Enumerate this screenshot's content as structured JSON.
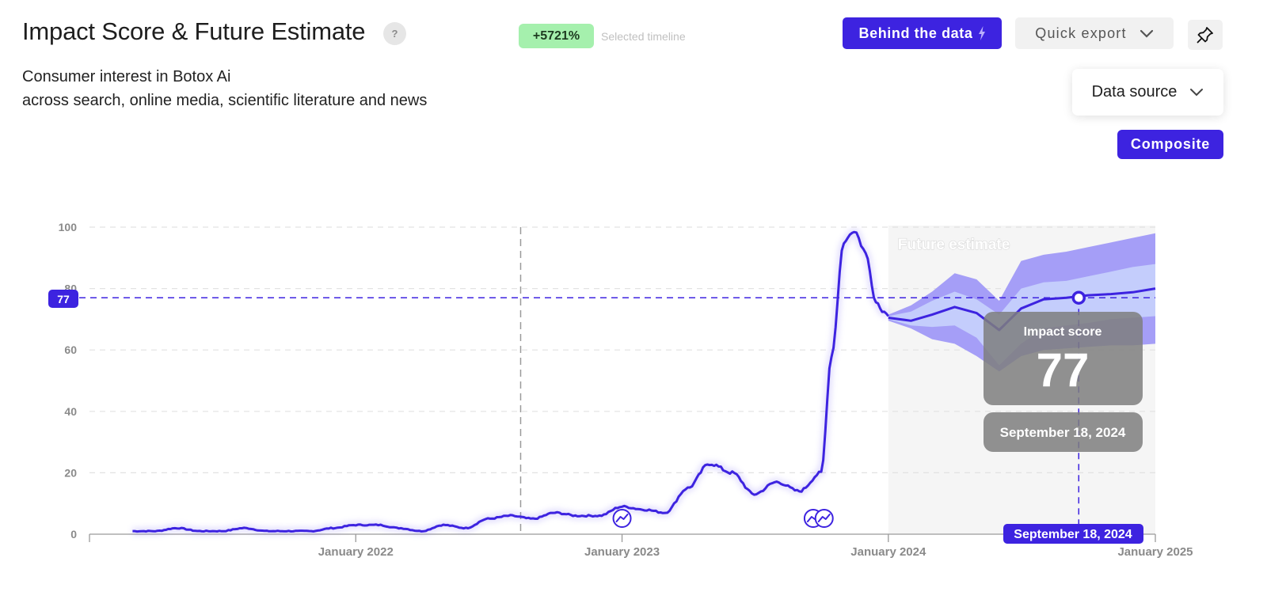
{
  "header": {
    "title": "Impact Score & Future Estimate",
    "help_label": "?",
    "subtitle_line1": "Consumer interest in Botox Ai",
    "subtitle_line2": "across search, online media, scientific literature and news",
    "change_badge": "+5721%",
    "change_caption": "Selected timeline"
  },
  "toolbar": {
    "behind_label": "Behind the data",
    "export_label": "Quick export",
    "data_source_label": "Data source",
    "composite_label": "Composite"
  },
  "icons": {
    "behind": "lightning-icon",
    "export": "chevron-down-icon",
    "pin": "pin-icon",
    "data_source": "chevron-down-icon",
    "event": "trend-event-icon"
  },
  "colors": {
    "accent": "#3d23e0",
    "band_outer": "#a59ef7",
    "band_inner": "#c4cdfc",
    "future_bg": "#f5f5f5",
    "tooltip_bg": "#8e8e8e",
    "badge_green": "#a5f0ad"
  },
  "chart_data": {
    "type": "line",
    "ylim": [
      0,
      100
    ],
    "yticks": [
      0,
      20,
      40,
      60,
      80,
      100
    ],
    "xlim": [
      "2021-01-01",
      "2025-01-01"
    ],
    "xticks": [
      {
        "date": "2022-01-01",
        "label": "January 2022"
      },
      {
        "date": "2023-01-01",
        "label": "January 2023"
      },
      {
        "date": "2024-01-01",
        "label": "January 2024"
      },
      {
        "date": "2025-01-01",
        "label": "January 2025"
      }
    ],
    "grid": true,
    "selected_timeline_start": "2022-08-15",
    "future_estimate": {
      "label": "Future estimate",
      "start": "2024-01-01",
      "x": [
        "2024-01-01",
        "2024-02-01",
        "2024-03-01",
        "2024-04-01",
        "2024-05-01",
        "2024-06-01",
        "2024-07-01",
        "2024-08-01",
        "2024-09-01",
        "2024-10-01",
        "2024-11-01",
        "2024-12-01",
        "2025-01-01"
      ],
      "median": [
        70.5,
        69.5,
        71.5,
        74,
        72,
        66.5,
        73.5,
        76.5,
        77,
        77.8,
        78.2,
        78.8,
        80
      ],
      "inner_upper": [
        71,
        72.5,
        76,
        79,
        76.5,
        71.5,
        80,
        82,
        82.5,
        84,
        85.5,
        87,
        88
      ],
      "inner_lower": [
        70,
        68,
        67.5,
        68,
        64,
        55,
        62,
        67,
        68,
        68.8,
        70,
        70.5,
        71
      ],
      "outer_upper": [
        71.5,
        74.5,
        79,
        85,
        83,
        76,
        89,
        91,
        92,
        93.5,
        95,
        96.5,
        98
      ],
      "outer_lower": [
        69.5,
        67,
        63.5,
        62,
        58,
        53,
        58,
        60,
        60.5,
        61,
        61.5,
        61.5,
        62
      ]
    },
    "series": [
      {
        "x": [
          "2021-03-01",
          "2021-04-01",
          "2021-05-01",
          "2021-06-01",
          "2021-07-01",
          "2021-08-01",
          "2021-09-01",
          "2021-10-01",
          "2021-11-01",
          "2021-12-01",
          "2022-01-01",
          "2022-02-01",
          "2022-03-01",
          "2022-04-01",
          "2022-05-01",
          "2022-06-01",
          "2022-07-01",
          "2022-08-01",
          "2022-09-01",
          "2022-10-01",
          "2022-11-01",
          "2022-12-01",
          "2023-01-01",
          "2023-02-01",
          "2023-03-01",
          "2023-04-01",
          "2023-05-01",
          "2023-06-01",
          "2023-07-01",
          "2023-08-01",
          "2023-09-01",
          "2023-10-01",
          "2023-10-15",
          "2023-11-01",
          "2023-11-15",
          "2023-12-01",
          "2023-12-15",
          "2024-01-01"
        ],
        "values": [
          1,
          1,
          2,
          1,
          1,
          2,
          1,
          1,
          1,
          2,
          3,
          3,
          2,
          1,
          3,
          2,
          5,
          6,
          5,
          7,
          6,
          6,
          9,
          8,
          7,
          15,
          23,
          20,
          13,
          17,
          14,
          20,
          58,
          95,
          99,
          92,
          75,
          71
        ]
      }
    ],
    "reference": {
      "value": 77,
      "value_label": "77",
      "date": "2024-09-18",
      "date_label": "September 18, 2024"
    },
    "tooltip": {
      "title": "Impact score",
      "value": "77",
      "date": "September 18, 2024"
    },
    "event_markers": [
      "2023-01-01",
      "2023-09-20",
      "2023-10-05"
    ]
  }
}
